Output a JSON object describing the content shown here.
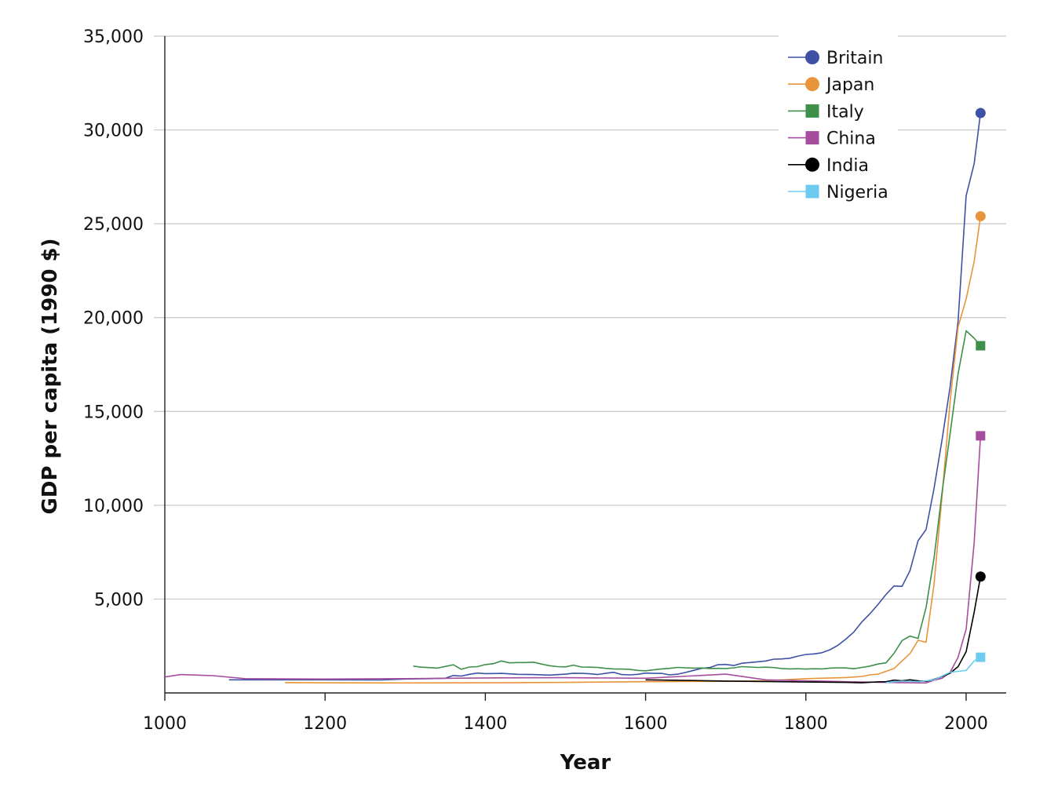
{
  "chart_data": {
    "type": "line",
    "title": "",
    "xlabel": "Year",
    "ylabel": "GDP per capita (1990 $)",
    "xlim": [
      1000,
      2050
    ],
    "ylim": [
      0,
      35000
    ],
    "x_ticks": [
      1000,
      1200,
      1400,
      1600,
      1800,
      2000
    ],
    "x_tick_labels": [
      "1000",
      "1200",
      "1400",
      "1600",
      "1800",
      "2000"
    ],
    "y_ticks": [
      5000,
      10000,
      15000,
      20000,
      25000,
      30000,
      35000
    ],
    "y_tick_labels": [
      "5,000",
      "10,000",
      "15,000",
      "20,000",
      "25,000",
      "30,000",
      "35,000"
    ],
    "grid": true,
    "legend": "top-right",
    "series": [
      {
        "name": "Britain",
        "color": "#3f51a5",
        "marker": "circle",
        "x": [
          1080,
          1100,
          1200,
          1270,
          1300,
          1330,
          1350,
          1360,
          1370,
          1380,
          1390,
          1400,
          1420,
          1440,
          1460,
          1480,
          1500,
          1510,
          1520,
          1530,
          1540,
          1550,
          1560,
          1570,
          1580,
          1590,
          1600,
          1610,
          1620,
          1630,
          1640,
          1650,
          1660,
          1670,
          1680,
          1690,
          1700,
          1710,
          1720,
          1730,
          1740,
          1750,
          1760,
          1770,
          1780,
          1790,
          1800,
          1810,
          1820,
          1830,
          1840,
          1850,
          1860,
          1870,
          1880,
          1890,
          1900,
          1910,
          1920,
          1930,
          1940,
          1950,
          1960,
          1970,
          1980,
          1990,
          2000,
          2010,
          2018
        ],
        "y": [
          700,
          700,
          700,
          690,
          740,
          760,
          780,
          930,
          900,
          990,
          1060,
          1030,
          1040,
          990,
          980,
          950,
          1000,
          1050,
          1040,
          1020,
          980,
          1040,
          1100,
          980,
          960,
          990,
          1060,
          1040,
          1040,
          960,
          1000,
          1090,
          1200,
          1310,
          1350,
          1500,
          1520,
          1460,
          1580,
          1620,
          1660,
          1700,
          1800,
          1810,
          1850,
          1960,
          2050,
          2080,
          2140,
          2300,
          2540,
          2870,
          3250,
          3790,
          4220,
          4710,
          5250,
          5700,
          5680,
          6520,
          8110,
          8700,
          10900,
          13500,
          16300,
          19800,
          26500,
          28200,
          30900
        ]
      },
      {
        "name": "Japan",
        "color": "#e8943a",
        "marker": "circle",
        "x": [
          1150,
          1200,
          1300,
          1400,
          1500,
          1600,
          1700,
          1750,
          1800,
          1850,
          1870,
          1880,
          1890,
          1900,
          1910,
          1920,
          1930,
          1940,
          1950,
          1960,
          1970,
          1980,
          1990,
          2000,
          2010,
          2018
        ],
        "y": [
          550,
          540,
          530,
          540,
          560,
          600,
          620,
          650,
          760,
          820,
          880,
          960,
          1000,
          1150,
          1300,
          1700,
          2100,
          2800,
          2700,
          5800,
          10500,
          15500,
          19500,
          21000,
          23000,
          25400
        ]
      },
      {
        "name": "Italy",
        "color": "#3d8f4a",
        "marker": "square",
        "x": [
          1310,
          1320,
          1330,
          1340,
          1350,
          1360,
          1370,
          1380,
          1390,
          1400,
          1410,
          1420,
          1430,
          1440,
          1450,
          1460,
          1470,
          1480,
          1490,
          1500,
          1510,
          1520,
          1530,
          1540,
          1550,
          1560,
          1570,
          1580,
          1590,
          1600,
          1610,
          1620,
          1630,
          1640,
          1650,
          1660,
          1670,
          1680,
          1690,
          1700,
          1710,
          1720,
          1730,
          1740,
          1750,
          1760,
          1770,
          1780,
          1790,
          1800,
          1810,
          1820,
          1830,
          1840,
          1850,
          1860,
          1870,
          1880,
          1890,
          1900,
          1910,
          1920,
          1930,
          1940,
          1950,
          1960,
          1970,
          1980,
          1990,
          2000,
          2010,
          2018
        ],
        "y": [
          1430,
          1370,
          1350,
          1320,
          1410,
          1500,
          1260,
          1380,
          1400,
          1510,
          1560,
          1700,
          1600,
          1620,
          1620,
          1640,
          1540,
          1450,
          1400,
          1390,
          1480,
          1380,
          1370,
          1360,
          1310,
          1280,
          1270,
          1260,
          1200,
          1180,
          1230,
          1280,
          1310,
          1360,
          1340,
          1320,
          1330,
          1300,
          1310,
          1300,
          1340,
          1400,
          1380,
          1360,
          1370,
          1350,
          1300,
          1280,
          1290,
          1270,
          1290,
          1280,
          1320,
          1340,
          1330,
          1290,
          1360,
          1430,
          1540,
          1600,
          2110,
          2790,
          3030,
          2900,
          4550,
          7200,
          10700,
          13800,
          17000,
          19300,
          18900,
          18500
        ]
      },
      {
        "name": "China",
        "color": "#a64d9e",
        "marker": "square",
        "x": [
          1000,
          1020,
          1060,
          1100,
          1200,
          1300,
          1400,
          1500,
          1600,
          1700,
          1750,
          1800,
          1850,
          1900,
          1950,
          1960,
          1970,
          1980,
          1990,
          2000,
          2010,
          2018
        ],
        "y": [
          850,
          980,
          920,
          760,
          740,
          760,
          800,
          810,
          780,
          1000,
          700,
          650,
          600,
          560,
          530,
          680,
          780,
          1100,
          1900,
          3400,
          8000,
          13700
        ]
      },
      {
        "name": "India",
        "color": "#000000",
        "marker": "circle",
        "x": [
          1600,
          1700,
          1800,
          1850,
          1870,
          1880,
          1890,
          1900,
          1910,
          1920,
          1930,
          1940,
          1950,
          1960,
          1970,
          1980,
          1990,
          2000,
          2010,
          2018
        ],
        "y": [
          700,
          630,
          580,
          560,
          540,
          570,
          590,
          600,
          680,
          650,
          700,
          650,
          620,
          720,
          880,
          1050,
          1400,
          2200,
          4300,
          6200
        ]
      },
      {
        "name": "Nigeria",
        "color": "#6ecbf0",
        "marker": "square",
        "x": [
          1900,
          1910,
          1920,
          1930,
          1940,
          1950,
          1960,
          1970,
          1980,
          1990,
          2000,
          2010,
          2018
        ],
        "y": [
          550,
          600,
          620,
          620,
          600,
          650,
          700,
          900,
          1100,
          1150,
          1200,
          1700,
          1900
        ]
      }
    ]
  }
}
